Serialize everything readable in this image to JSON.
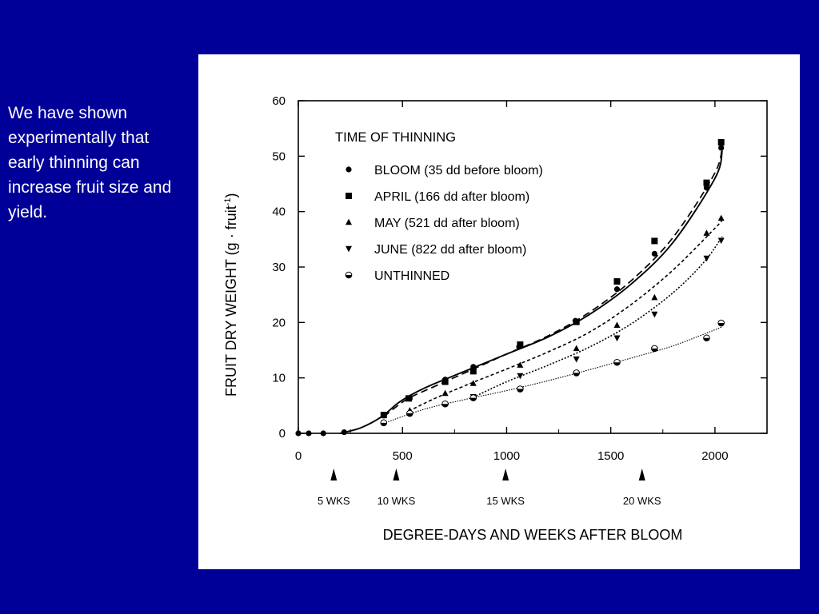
{
  "slide": {
    "text": "We have shown experimentally that early thinning can increase fruit size and yield.",
    "background_color": "#000099",
    "text_color": "#ffffff",
    "panel_color": "#ffffff"
  },
  "chart_data": {
    "type": "scatter",
    "title": "",
    "xlabel": "DEGREE-DAYS AND WEEKS AFTER BLOOM",
    "ylabel_main": "FRUIT DRY WEIGHT (g · fruit",
    "ylabel_sup": "-1",
    "ylabel_close": ")",
    "xlim": [
      0,
      2250
    ],
    "ylim": [
      0,
      60
    ],
    "x_ticks": [
      0,
      500,
      1000,
      1500,
      2000
    ],
    "y_ticks": [
      0,
      10,
      20,
      30,
      40,
      50,
      60
    ],
    "grid": false,
    "legend_title": "TIME OF THINNING",
    "legend_position": "top-left",
    "week_markers": [
      {
        "label": "5 WKS",
        "x": 170
      },
      {
        "label": "10 WKS",
        "x": 470
      },
      {
        "label": "15 WKS",
        "x": 995
      },
      {
        "label": "20 WKS",
        "x": 1650
      }
    ],
    "series": [
      {
        "name": "BLOOM (35 dd before bloom)",
        "marker": "circle",
        "line": "solid",
        "points": [
          [
            0,
            0
          ],
          [
            50,
            0
          ],
          [
            120,
            0
          ],
          [
            220,
            0.2
          ],
          [
            410,
            3.2
          ],
          [
            535,
            6.3
          ],
          [
            705,
            9.7
          ],
          [
            840,
            12
          ],
          [
            1060,
            15.6
          ],
          [
            1330,
            20.3
          ],
          [
            1530,
            26
          ],
          [
            1710,
            32.4
          ],
          [
            1960,
            44.3
          ],
          [
            2030,
            51.5
          ]
        ],
        "fit": [
          [
            200,
            0
          ],
          [
            300,
            1
          ],
          [
            400,
            3
          ],
          [
            480,
            5.5
          ],
          [
            560,
            7.3
          ],
          [
            650,
            8.9
          ],
          [
            800,
            11.2
          ],
          [
            1000,
            14.3
          ],
          [
            1200,
            17.4
          ],
          [
            1400,
            21.5
          ],
          [
            1600,
            27
          ],
          [
            1800,
            34.5
          ],
          [
            2000,
            46
          ],
          [
            2035,
            51
          ]
        ]
      },
      {
        "name": "APRIL (166 dd after bloom)",
        "marker": "square",
        "line": "dashed",
        "points": [
          [
            410,
            3.3
          ],
          [
            530,
            6.3
          ],
          [
            705,
            9.3
          ],
          [
            840,
            11.2
          ],
          [
            1065,
            16
          ],
          [
            1335,
            20.1
          ],
          [
            1530,
            27.4
          ],
          [
            1710,
            34.7
          ],
          [
            1960,
            45.2
          ],
          [
            2030,
            52.5
          ]
        ],
        "fit": [
          [
            410,
            3
          ],
          [
            520,
            6.1
          ],
          [
            650,
            8.4
          ],
          [
            800,
            10.9
          ],
          [
            1000,
            14.3
          ],
          [
            1200,
            17.6
          ],
          [
            1400,
            21.9
          ],
          [
            1600,
            27.6
          ],
          [
            1800,
            35.4
          ],
          [
            2000,
            47
          ],
          [
            2035,
            52.3
          ]
        ]
      },
      {
        "name": "MAY (521 dd after bloom)",
        "marker": "triangle-up",
        "line": "short-dash",
        "points": [
          [
            535,
            4.1
          ],
          [
            705,
            7.2
          ],
          [
            840,
            9
          ],
          [
            1065,
            12.3
          ],
          [
            1335,
            15.3
          ],
          [
            1530,
            19.5
          ],
          [
            1710,
            24.5
          ],
          [
            1960,
            36.1
          ],
          [
            2030,
            38.8
          ]
        ],
        "fit": [
          [
            530,
            4
          ],
          [
            650,
            6.2
          ],
          [
            800,
            8.6
          ],
          [
            1000,
            11.6
          ],
          [
            1200,
            14.7
          ],
          [
            1400,
            18.3
          ],
          [
            1600,
            23.3
          ],
          [
            1800,
            29.5
          ],
          [
            2000,
            37
          ],
          [
            2035,
            38.5
          ]
        ]
      },
      {
        "name": "JUNE (822 dd after bloom)",
        "marker": "triangle-down",
        "line": "dotted",
        "points": [
          [
            840,
            6.6
          ],
          [
            1065,
            10.4
          ],
          [
            1335,
            13.4
          ],
          [
            1530,
            17.2
          ],
          [
            1710,
            21.5
          ],
          [
            1960,
            31.6
          ],
          [
            2030,
            34.8
          ]
        ],
        "fit": [
          [
            840,
            6.5
          ],
          [
            1000,
            9.3
          ],
          [
            1200,
            12.3
          ],
          [
            1400,
            15.6
          ],
          [
            1600,
            19.8
          ],
          [
            1800,
            25.4
          ],
          [
            1950,
            31
          ],
          [
            2035,
            35.5
          ]
        ]
      },
      {
        "name": "UNTHINNED",
        "marker": "half-circle",
        "line": "thin-dotted",
        "points": [
          [
            410,
            1.9
          ],
          [
            535,
            3.6
          ],
          [
            705,
            5.3
          ],
          [
            840,
            6.4
          ],
          [
            1065,
            8
          ],
          [
            1335,
            10.9
          ],
          [
            1530,
            12.8
          ],
          [
            1710,
            15.3
          ],
          [
            1960,
            17.2
          ],
          [
            2030,
            19.9
          ]
        ],
        "fit": [
          [
            410,
            1.8
          ],
          [
            600,
            4.3
          ],
          [
            800,
            6.1
          ],
          [
            1000,
            7.7
          ],
          [
            1200,
            9.5
          ],
          [
            1400,
            11.5
          ],
          [
            1600,
            13.6
          ],
          [
            1800,
            15.8
          ],
          [
            2035,
            19.2
          ]
        ]
      }
    ]
  }
}
